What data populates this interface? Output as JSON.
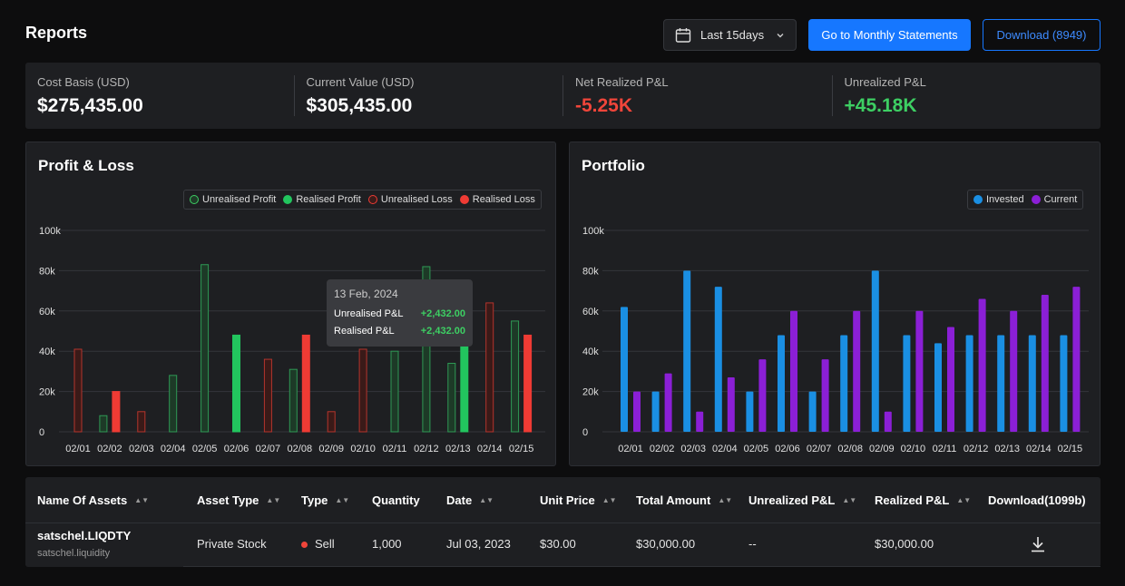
{
  "header": {
    "title": "Reports",
    "date_range": "Last 15days",
    "monthly_button": "Go to Monthly Statements",
    "download_button": "Download (8949)"
  },
  "stats": [
    {
      "label": "Cost Basis (USD)",
      "value": "$275,435.00",
      "tone": "neutral"
    },
    {
      "label": "Current Value (USD)",
      "value": "$305,435.00",
      "tone": "neutral"
    },
    {
      "label": "Net Realized P&L",
      "value": "-5.25K",
      "tone": "negative"
    },
    {
      "label": "Unrealized P&L",
      "value": "+45.18K",
      "tone": "positive"
    }
  ],
  "colors": {
    "unrealised_profit": "#1f6b3a",
    "realised_profit": "#22c55e",
    "unrealised_loss": "#8a2a25",
    "realised_loss": "#ef3b34",
    "invested": "#1a8fe3",
    "current": "#8b1fd6"
  },
  "chart_data": [
    {
      "type": "bar",
      "title": "Profit & Loss",
      "categories": [
        "02/01",
        "02/02",
        "02/03",
        "02/04",
        "02/05",
        "02/06",
        "02/07",
        "02/08",
        "02/09",
        "02/10",
        "02/11",
        "02/12",
        "02/13",
        "02/14",
        "02/15"
      ],
      "ylim": [
        0,
        100000
      ],
      "yticks": [
        "0",
        "20k",
        "40k",
        "60k",
        "80k",
        "100k"
      ],
      "legend": [
        "Unrealised Profit",
        "Realised Profit",
        "Unrealised Loss",
        "Realised Loss"
      ],
      "bars": [
        {
          "cat": 0,
          "value": 41000,
          "kind": "unrealised_loss"
        },
        {
          "cat": 1,
          "value": 8000,
          "kind": "unrealised_profit"
        },
        {
          "cat": 1,
          "value": 20000,
          "kind": "realised_loss"
        },
        {
          "cat": 2,
          "value": 10000,
          "kind": "unrealised_loss"
        },
        {
          "cat": 3,
          "value": 28000,
          "kind": "unrealised_profit"
        },
        {
          "cat": 4,
          "value": 83000,
          "kind": "unrealised_profit"
        },
        {
          "cat": 5,
          "value": 48000,
          "kind": "realised_profit"
        },
        {
          "cat": 6,
          "value": 36000,
          "kind": "unrealised_loss"
        },
        {
          "cat": 7,
          "value": 31000,
          "kind": "unrealised_profit"
        },
        {
          "cat": 7,
          "value": 48000,
          "kind": "realised_loss"
        },
        {
          "cat": 8,
          "value": 10000,
          "kind": "unrealised_loss"
        },
        {
          "cat": 9,
          "value": 41000,
          "kind": "unrealised_loss"
        },
        {
          "cat": 10,
          "value": 40000,
          "kind": "unrealised_profit"
        },
        {
          "cat": 11,
          "value": 82000,
          "kind": "unrealised_profit"
        },
        {
          "cat": 12,
          "value": 34000,
          "kind": "unrealised_profit"
        },
        {
          "cat": 12,
          "value": 43000,
          "kind": "realised_profit"
        },
        {
          "cat": 13,
          "value": 64000,
          "kind": "unrealised_loss"
        },
        {
          "cat": 14,
          "value": 55000,
          "kind": "unrealised_profit"
        },
        {
          "cat": 14,
          "value": 48000,
          "kind": "realised_loss"
        }
      ]
    },
    {
      "type": "bar",
      "title": "Portfolio",
      "categories": [
        "02/01",
        "02/02",
        "02/03",
        "02/04",
        "02/05",
        "02/06",
        "02/07",
        "02/08",
        "02/09",
        "02/10",
        "02/11",
        "02/12",
        "02/13",
        "02/14",
        "02/15"
      ],
      "ylim": [
        0,
        100000
      ],
      "yticks": [
        "0",
        "20k",
        "40k",
        "60k",
        "80k",
        "100k"
      ],
      "legend": [
        "Invested",
        "Current"
      ],
      "series": [
        {
          "name": "Invested",
          "values": [
            62000,
            20000,
            80000,
            72000,
            20000,
            48000,
            20000,
            48000,
            80000,
            48000,
            44000,
            48000,
            48000,
            48000,
            48000
          ]
        },
        {
          "name": "Current",
          "values": [
            20000,
            29000,
            10000,
            27000,
            36000,
            60000,
            36000,
            60000,
            10000,
            60000,
            52000,
            66000,
            60000,
            68000,
            72000
          ]
        }
      ]
    }
  ],
  "tooltip": {
    "date": "13 Feb, 2024",
    "rows": [
      {
        "label": "Unrealised P&L",
        "value": "+2,432.00"
      },
      {
        "label": "Realised P&L",
        "value": "+2,432.00"
      }
    ]
  },
  "table": {
    "headers": [
      "Name Of Assets",
      "Asset Type",
      "Type",
      "Quantity",
      "Date",
      "Unit Price",
      "Total Amount",
      "Unrealized P&L",
      "Realized P&L",
      "Download(1099b)"
    ],
    "rows": [
      {
        "name": "satschel.LIQDTY",
        "sub": "satschel.liquidity",
        "asset_type": "Private Stock",
        "type": "Sell",
        "quantity": "1,000",
        "date": "Jul 03, 2023",
        "unit_price": "$30.00",
        "total_amount": "$30,000.00",
        "unrealized": "--",
        "realized": "$30,000.00"
      }
    ]
  }
}
